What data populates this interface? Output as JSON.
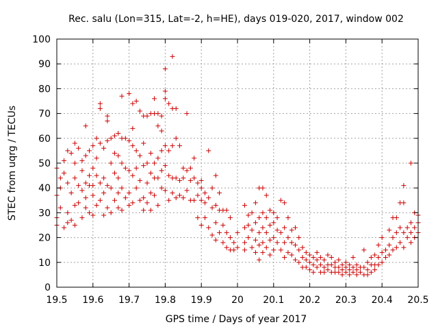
{
  "chart_data": {
    "type": "scatter",
    "title": "Rec. salu (Lon=315, Lat=-2, h=HE), days 019-020, 2017, window 002",
    "xlabel": "GPS time / Days of year 2017",
    "ylabel": "STEC from uqrg / TECUs",
    "xlim": [
      19.5,
      20.5
    ],
    "ylim": [
      0,
      100
    ],
    "xticks": [
      19.5,
      19.6,
      19.7,
      19.8,
      19.9,
      20.0,
      20.1,
      20.2,
      20.3,
      20.4,
      20.5
    ],
    "xtick_labels": [
      "19.5",
      "19.6",
      "19.7",
      "19.8",
      "19.9",
      "20",
      "20.1",
      "20.2",
      "20.3",
      "20.4",
      "20.5"
    ],
    "yticks": [
      0,
      10,
      20,
      30,
      40,
      50,
      60,
      70,
      80,
      90,
      100
    ],
    "ytick_labels": [
      "0",
      "10",
      "20",
      "30",
      "40",
      "50",
      "60",
      "70",
      "80",
      "90",
      "100"
    ],
    "grid": true,
    "marker": "+",
    "color": "#cc0000",
    "points": [
      [
        19.5,
        48
      ],
      [
        19.5,
        37
      ],
      [
        19.5,
        28
      ],
      [
        19.5,
        25
      ],
      [
        19.51,
        44
      ],
      [
        19.51,
        40
      ],
      [
        19.51,
        32
      ],
      [
        19.52,
        51
      ],
      [
        19.52,
        46
      ],
      [
        19.52,
        24
      ],
      [
        19.53,
        55
      ],
      [
        19.53,
        42
      ],
      [
        19.53,
        30
      ],
      [
        19.53,
        26
      ],
      [
        19.54,
        54
      ],
      [
        19.54,
        38
      ],
      [
        19.54,
        27
      ],
      [
        19.55,
        58
      ],
      [
        19.55,
        50
      ],
      [
        19.55,
        44
      ],
      [
        19.55,
        33
      ],
      [
        19.55,
        25
      ],
      [
        19.56,
        56
      ],
      [
        19.56,
        41
      ],
      [
        19.56,
        34
      ],
      [
        19.57,
        51
      ],
      [
        19.57,
        47
      ],
      [
        19.57,
        39
      ],
      [
        19.57,
        28
      ],
      [
        19.58,
        65
      ],
      [
        19.58,
        53
      ],
      [
        19.58,
        42
      ],
      [
        19.58,
        36
      ],
      [
        19.58,
        32
      ],
      [
        19.59,
        55
      ],
      [
        19.59,
        45
      ],
      [
        19.59,
        41
      ],
      [
        19.59,
        30
      ],
      [
        19.6,
        57
      ],
      [
        19.6,
        48
      ],
      [
        19.6,
        41
      ],
      [
        19.6,
        37
      ],
      [
        19.6,
        29
      ],
      [
        19.61,
        60
      ],
      [
        19.61,
        52
      ],
      [
        19.61,
        45
      ],
      [
        19.61,
        33
      ],
      [
        19.62,
        74
      ],
      [
        19.62,
        72
      ],
      [
        19.62,
        58
      ],
      [
        19.62,
        42
      ],
      [
        19.62,
        35
      ],
      [
        19.63,
        56
      ],
      [
        19.63,
        44
      ],
      [
        19.63,
        38
      ],
      [
        19.63,
        29
      ],
      [
        19.64,
        69
      ],
      [
        19.64,
        67
      ],
      [
        19.64,
        59
      ],
      [
        19.64,
        41
      ],
      [
        19.64,
        32
      ],
      [
        19.65,
        60
      ],
      [
        19.65,
        50
      ],
      [
        19.65,
        40
      ],
      [
        19.65,
        30
      ],
      [
        19.66,
        61
      ],
      [
        19.66,
        54
      ],
      [
        19.66,
        46
      ],
      [
        19.66,
        35
      ],
      [
        19.67,
        62
      ],
      [
        19.67,
        53
      ],
      [
        19.67,
        44
      ],
      [
        19.67,
        38
      ],
      [
        19.67,
        32
      ],
      [
        19.68,
        77
      ],
      [
        19.68,
        60
      ],
      [
        19.68,
        50
      ],
      [
        19.68,
        40
      ],
      [
        19.68,
        31
      ],
      [
        19.69,
        60
      ],
      [
        19.69,
        48
      ],
      [
        19.69,
        36
      ],
      [
        19.7,
        78
      ],
      [
        19.7,
        59
      ],
      [
        19.7,
        47
      ],
      [
        19.7,
        38
      ],
      [
        19.7,
        33
      ],
      [
        19.71,
        74
      ],
      [
        19.71,
        64
      ],
      [
        19.71,
        57
      ],
      [
        19.71,
        45
      ],
      [
        19.71,
        34
      ],
      [
        19.72,
        75
      ],
      [
        19.72,
        55
      ],
      [
        19.72,
        48
      ],
      [
        19.72,
        40
      ],
      [
        19.73,
        71
      ],
      [
        19.73,
        53
      ],
      [
        19.73,
        43
      ],
      [
        19.73,
        35
      ],
      [
        19.74,
        69
      ],
      [
        19.74,
        58
      ],
      [
        19.74,
        49
      ],
      [
        19.74,
        36
      ],
      [
        19.74,
        31
      ],
      [
        19.75,
        69
      ],
      [
        19.75,
        50
      ],
      [
        19.75,
        42
      ],
      [
        19.75,
        34
      ],
      [
        19.76,
        70
      ],
      [
        19.76,
        54
      ],
      [
        19.76,
        46
      ],
      [
        19.76,
        38
      ],
      [
        19.76,
        31
      ],
      [
        19.77,
        76
      ],
      [
        19.77,
        70
      ],
      [
        19.77,
        50
      ],
      [
        19.77,
        44
      ],
      [
        19.77,
        37
      ],
      [
        19.78,
        70
      ],
      [
        19.78,
        65
      ],
      [
        19.78,
        52
      ],
      [
        19.78,
        44
      ],
      [
        19.78,
        33
      ],
      [
        19.79,
        69
      ],
      [
        19.79,
        63
      ],
      [
        19.79,
        55
      ],
      [
        19.79,
        47
      ],
      [
        19.79,
        40
      ],
      [
        19.8,
        88
      ],
      [
        19.8,
        79
      ],
      [
        19.8,
        76
      ],
      [
        19.8,
        57
      ],
      [
        19.8,
        49
      ],
      [
        19.8,
        39
      ],
      [
        19.81,
        74
      ],
      [
        19.81,
        55
      ],
      [
        19.81,
        45
      ],
      [
        19.81,
        35
      ],
      [
        19.82,
        93
      ],
      [
        19.82,
        72
      ],
      [
        19.82,
        57
      ],
      [
        19.82,
        44
      ],
      [
        19.82,
        38
      ],
      [
        19.83,
        72
      ],
      [
        19.83,
        60
      ],
      [
        19.83,
        44
      ],
      [
        19.83,
        36
      ],
      [
        19.84,
        57
      ],
      [
        19.84,
        43
      ],
      [
        19.84,
        37
      ],
      [
        19.85,
        48
      ],
      [
        19.85,
        44
      ],
      [
        19.85,
        36
      ],
      [
        19.86,
        70
      ],
      [
        19.86,
        47
      ],
      [
        19.86,
        39
      ],
      [
        19.87,
        48
      ],
      [
        19.87,
        43
      ],
      [
        19.87,
        35
      ],
      [
        19.88,
        52
      ],
      [
        19.88,
        44
      ],
      [
        19.88,
        35
      ],
      [
        19.89,
        42
      ],
      [
        19.89,
        37
      ],
      [
        19.89,
        28
      ],
      [
        19.9,
        43
      ],
      [
        19.9,
        40
      ],
      [
        19.9,
        35
      ],
      [
        19.9,
        25
      ],
      [
        19.91,
        38
      ],
      [
        19.91,
        34
      ],
      [
        19.91,
        28
      ],
      [
        19.92,
        55
      ],
      [
        19.92,
        36
      ],
      [
        19.92,
        24
      ],
      [
        19.93,
        40
      ],
      [
        19.93,
        32
      ],
      [
        19.93,
        21
      ],
      [
        19.94,
        45
      ],
      [
        19.94,
        33
      ],
      [
        19.94,
        26
      ],
      [
        19.94,
        19
      ],
      [
        19.95,
        38
      ],
      [
        19.95,
        31
      ],
      [
        19.95,
        22
      ],
      [
        19.96,
        31
      ],
      [
        19.96,
        25
      ],
      [
        19.96,
        18
      ],
      [
        19.97,
        31
      ],
      [
        19.97,
        22
      ],
      [
        19.97,
        16
      ],
      [
        19.98,
        28
      ],
      [
        19.98,
        20
      ],
      [
        19.98,
        15
      ],
      [
        19.99,
        18
      ],
      [
        19.99,
        15
      ],
      [
        20.0,
        22
      ],
      [
        20.0,
        16
      ],
      [
        20.02,
        33
      ],
      [
        20.02,
        24
      ],
      [
        20.02,
        18
      ],
      [
        20.02,
        15
      ],
      [
        20.03,
        29
      ],
      [
        20.03,
        25
      ],
      [
        20.03,
        20
      ],
      [
        20.04,
        30
      ],
      [
        20.04,
        23
      ],
      [
        20.04,
        16
      ],
      [
        20.05,
        34
      ],
      [
        20.05,
        26
      ],
      [
        20.05,
        19
      ],
      [
        20.05,
        14
      ],
      [
        20.06,
        40
      ],
      [
        20.06,
        28
      ],
      [
        20.06,
        22
      ],
      [
        20.06,
        17
      ],
      [
        20.06,
        11
      ],
      [
        20.07,
        40
      ],
      [
        20.07,
        30
      ],
      [
        20.07,
        24
      ],
      [
        20.07,
        18
      ],
      [
        20.07,
        14
      ],
      [
        20.08,
        37
      ],
      [
        20.08,
        28
      ],
      [
        20.08,
        22
      ],
      [
        20.08,
        16
      ],
      [
        20.09,
        31
      ],
      [
        20.09,
        25
      ],
      [
        20.09,
        19
      ],
      [
        20.09,
        13
      ],
      [
        20.1,
        30
      ],
      [
        20.1,
        26
      ],
      [
        20.1,
        20
      ],
      [
        20.1,
        15
      ],
      [
        20.11,
        28
      ],
      [
        20.11,
        23
      ],
      [
        20.11,
        18
      ],
      [
        20.12,
        35
      ],
      [
        20.12,
        22
      ],
      [
        20.12,
        15
      ],
      [
        20.13,
        34
      ],
      [
        20.13,
        24
      ],
      [
        20.13,
        18
      ],
      [
        20.13,
        12
      ],
      [
        20.14,
        28
      ],
      [
        20.14,
        20
      ],
      [
        20.14,
        14
      ],
      [
        20.15,
        23
      ],
      [
        20.15,
        18
      ],
      [
        20.15,
        13
      ],
      [
        20.16,
        24
      ],
      [
        20.16,
        17
      ],
      [
        20.16,
        11
      ],
      [
        20.17,
        20
      ],
      [
        20.17,
        15
      ],
      [
        20.17,
        10
      ],
      [
        20.18,
        16
      ],
      [
        20.18,
        12
      ],
      [
        20.18,
        8
      ],
      [
        20.19,
        14
      ],
      [
        20.19,
        11
      ],
      [
        20.19,
        8
      ],
      [
        20.2,
        13
      ],
      [
        20.2,
        10
      ],
      [
        20.2,
        7
      ],
      [
        20.21,
        12
      ],
      [
        20.21,
        9
      ],
      [
        20.21,
        6
      ],
      [
        20.22,
        14
      ],
      [
        20.22,
        11
      ],
      [
        20.22,
        8
      ],
      [
        20.23,
        12
      ],
      [
        20.23,
        9
      ],
      [
        20.23,
        6
      ],
      [
        20.24,
        11
      ],
      [
        20.24,
        8
      ],
      [
        20.24,
        6
      ],
      [
        20.25,
        13
      ],
      [
        20.25,
        9
      ],
      [
        20.25,
        7
      ],
      [
        20.26,
        12
      ],
      [
        20.26,
        9
      ],
      [
        20.26,
        6
      ],
      [
        20.27,
        10
      ],
      [
        20.27,
        8
      ],
      [
        20.27,
        6
      ],
      [
        20.28,
        11
      ],
      [
        20.28,
        8
      ],
      [
        20.28,
        6
      ],
      [
        20.29,
        9
      ],
      [
        20.29,
        7
      ],
      [
        20.29,
        5
      ],
      [
        20.3,
        10
      ],
      [
        20.3,
        8
      ],
      [
        20.3,
        6
      ],
      [
        20.31,
        9
      ],
      [
        20.31,
        7
      ],
      [
        20.31,
        5
      ],
      [
        20.32,
        12
      ],
      [
        20.32,
        8
      ],
      [
        20.32,
        6
      ],
      [
        20.33,
        9
      ],
      [
        20.33,
        7
      ],
      [
        20.33,
        5
      ],
      [
        20.34,
        8
      ],
      [
        20.34,
        6
      ],
      [
        20.35,
        15
      ],
      [
        20.35,
        8
      ],
      [
        20.35,
        5
      ],
      [
        20.36,
        10
      ],
      [
        20.36,
        7
      ],
      [
        20.36,
        5
      ],
      [
        20.37,
        12
      ],
      [
        20.37,
        9
      ],
      [
        20.37,
        6
      ],
      [
        20.38,
        13
      ],
      [
        20.38,
        9
      ],
      [
        20.38,
        7
      ],
      [
        20.39,
        17
      ],
      [
        20.39,
        12
      ],
      [
        20.39,
        9
      ],
      [
        20.4,
        20
      ],
      [
        20.4,
        14
      ],
      [
        20.4,
        10
      ],
      [
        20.41,
        15
      ],
      [
        20.41,
        12
      ],
      [
        20.42,
        23
      ],
      [
        20.42,
        17
      ],
      [
        20.42,
        13
      ],
      [
        20.43,
        28
      ],
      [
        20.43,
        20
      ],
      [
        20.43,
        15
      ],
      [
        20.44,
        28
      ],
      [
        20.44,
        22
      ],
      [
        20.44,
        16
      ],
      [
        20.45,
        34
      ],
      [
        20.45,
        24
      ],
      [
        20.45,
        18
      ],
      [
        20.46,
        41
      ],
      [
        20.46,
        34
      ],
      [
        20.46,
        22
      ],
      [
        20.46,
        16
      ],
      [
        20.47,
        24
      ],
      [
        20.47,
        20
      ],
      [
        20.48,
        50
      ],
      [
        20.48,
        26
      ],
      [
        20.48,
        22
      ],
      [
        20.48,
        18
      ],
      [
        20.49,
        30
      ],
      [
        20.49,
        24
      ],
      [
        20.49,
        20
      ],
      [
        20.5,
        29
      ],
      [
        20.5,
        26
      ],
      [
        20.5,
        22
      ]
    ]
  }
}
